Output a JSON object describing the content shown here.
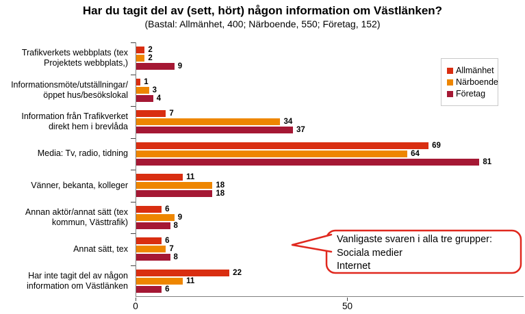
{
  "title": "Har du tagit del av (sett, hört) någon information om Västlänken?",
  "subtitle": "(Bastal: Allmänhet, 400; Närboende, 550; Företag, 152)",
  "chart_data": {
    "type": "bar",
    "orientation": "horizontal",
    "title": "Har du tagit del av (sett, hört) någon information om Västlänken?",
    "subtitle": "(Bastal: Allmänhet, 400; Närboende, 550; Företag, 152)",
    "categories": [
      "Trafikverkets webbplats (tex\nProjektets webbplats,)",
      "Informationsmöte/utställningar/\nöppet hus/besökslokal",
      "Information från Trafikverket\ndirekt hem i brevlåda",
      "Media: Tv, radio, tidning",
      "Vänner, bekanta, kolleger",
      "Annan aktör/annat sätt (tex\nkommun, Västtrafik)",
      "Annat sätt, tex",
      "Har inte tagit del av någon\ninformation om Västlänken"
    ],
    "series": [
      {
        "name": "Allmänhet",
        "color": "#d92e11",
        "values": [
          2,
          1,
          7,
          69,
          11,
          6,
          6,
          22
        ]
      },
      {
        "name": "Närboende",
        "color": "#ee8600",
        "values": [
          2,
          3,
          34,
          64,
          18,
          9,
          7,
          11
        ]
      },
      {
        "name": "Företag",
        "color": "#a51834",
        "values": [
          9,
          4,
          37,
          81,
          18,
          8,
          8,
          6
        ]
      }
    ],
    "xlim": [
      0,
      91.6
    ],
    "x_ticks": [
      0,
      50
    ],
    "grid": false,
    "legend_position": "right",
    "value_labels": true
  },
  "callout": {
    "lines": [
      "Vanligaste svaren i alla tre grupper:",
      "Sociala medier",
      "Internet"
    ],
    "border_color": "#e0281e"
  },
  "colors": {
    "axis": "#7f7f7f",
    "tick": "#404040",
    "legend_border": "#c9c9c9"
  }
}
